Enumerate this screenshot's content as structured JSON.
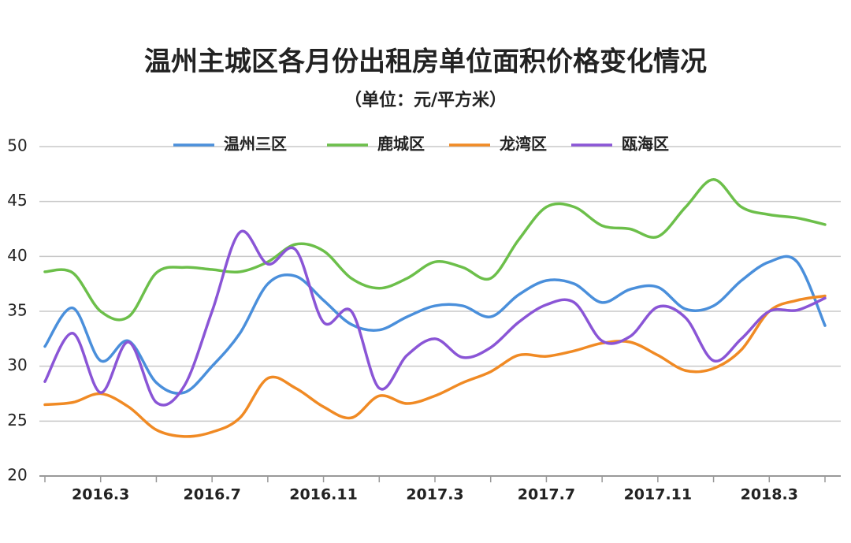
{
  "chart_data": {
    "type": "line",
    "title": "温州主城区各月份出租房单位面积价格变化情况",
    "subtitle": "（单位：元/平方米）",
    "categories": [
      null,
      null,
      "2016.3",
      null,
      null,
      null,
      "2016.7",
      null,
      null,
      null,
      "2016.11",
      null,
      null,
      null,
      "2017.3",
      null,
      null,
      null,
      "2017.7",
      null,
      null,
      null,
      "2017.11",
      null,
      null,
      null,
      "2018.3",
      null,
      null
    ],
    "series": [
      {
        "name": "温州三区",
        "color": "#4a8fdb",
        "values": [
          31.8,
          35.3,
          30.5,
          32.3,
          28.5,
          27.6,
          30,
          33,
          37.5,
          38.2,
          36,
          33.8,
          33.3,
          34.5,
          35.5,
          35.5,
          34.5,
          36.5,
          37.8,
          37.5,
          35.8,
          37,
          37.2,
          35.2,
          35.5,
          37.8,
          39.5,
          39.5,
          33.7
        ]
      },
      {
        "name": "鹿城区",
        "color": "#6cbf4a",
        "values": [
          38.6,
          38.5,
          35,
          34.5,
          38.5,
          39,
          38.8,
          38.6,
          39.5,
          41.1,
          40.5,
          38,
          37.1,
          38,
          39.5,
          39,
          38,
          41.5,
          44.5,
          44.5,
          42.8,
          42.5,
          41.8,
          44.5,
          47,
          44.5,
          43.8,
          43.5,
          42.9
        ]
      },
      {
        "name": "龙湾区",
        "color": "#f08a24",
        "values": [
          26.5,
          26.7,
          27.5,
          26.3,
          24.2,
          23.6,
          24,
          25.3,
          28.9,
          28,
          26.3,
          25.3,
          27.3,
          26.6,
          27.3,
          28.5,
          29.5,
          31,
          30.9,
          31.4,
          32.1,
          32.2,
          31,
          29.6,
          29.8,
          31.5,
          35,
          36,
          36.4
        ]
      },
      {
        "name": "瓯海区",
        "color": "#8a55d6",
        "values": [
          28.6,
          33,
          27.6,
          32.2,
          26.7,
          28.2,
          35,
          42.2,
          39.3,
          40.6,
          34,
          35,
          28,
          31,
          32.5,
          30.8,
          31.7,
          34,
          35.6,
          35.8,
          32.3,
          32.7,
          35.4,
          34.4,
          30.5,
          32.5,
          35,
          35.1,
          36.2
        ]
      }
    ],
    "ylim": [
      20,
      50
    ],
    "yticks": [
      20,
      25,
      30,
      35,
      40,
      45,
      50
    ],
    "grid": true,
    "legend": "top"
  }
}
